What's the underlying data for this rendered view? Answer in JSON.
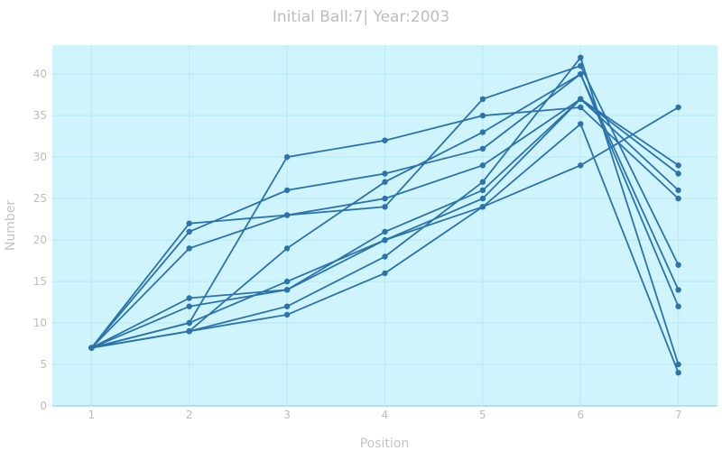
{
  "chart_data": {
    "type": "line",
    "title": "Initial Ball:7| Year:2003",
    "xlabel": "Position",
    "ylabel": "Number",
    "x": [
      1,
      2,
      3,
      4,
      5,
      6,
      7
    ],
    "xlim": [
      0.6,
      7.4
    ],
    "ylim": [
      0,
      43.5
    ],
    "xticks": [
      "1",
      "2",
      "3",
      "4",
      "5",
      "6",
      "7"
    ],
    "yticks": [
      "0",
      "5",
      "10",
      "15",
      "20",
      "25",
      "30",
      "35",
      "40"
    ],
    "grid": true,
    "legend": "none",
    "colors": {
      "line": "#2a73ad",
      "plot_bg": "#cff4fc",
      "grid": "#b8e8f2"
    },
    "series": [
      {
        "values": [
          7,
          22,
          23,
          24,
          37,
          41,
          17
        ]
      },
      {
        "values": [
          7,
          21,
          26,
          28,
          31,
          40,
          14
        ]
      },
      {
        "values": [
          7,
          19,
          23,
          25,
          29,
          37,
          26
        ]
      },
      {
        "values": [
          7,
          13,
          14,
          21,
          26,
          37,
          29
        ]
      },
      {
        "values": [
          7,
          12,
          14,
          20,
          25,
          37,
          28
        ]
      },
      {
        "values": [
          7,
          10,
          30,
          32,
          35,
          36,
          25
        ]
      },
      {
        "values": [
          7,
          10,
          15,
          20,
          24,
          29,
          36
        ]
      },
      {
        "values": [
          7,
          9,
          19,
          27,
          33,
          40,
          12
        ]
      },
      {
        "values": [
          7,
          9,
          12,
          18,
          27,
          42,
          5
        ]
      },
      {
        "values": [
          7,
          9,
          11,
          16,
          24,
          34,
          4
        ]
      }
    ]
  }
}
